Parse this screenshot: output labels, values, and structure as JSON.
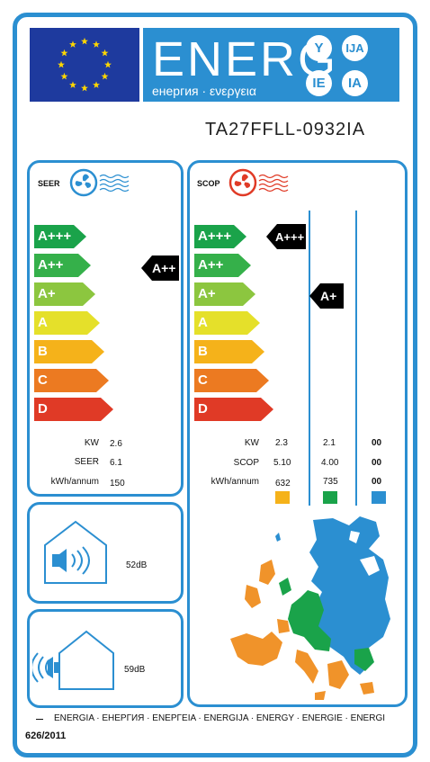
{
  "header": {
    "energy_word": "ENERG",
    "energy_subtitle": "енергия · ενεργεια",
    "suffixes": [
      "Y",
      "IJA",
      "IE",
      "IA"
    ],
    "model": "TA27FFLL-0932IA"
  },
  "seer": {
    "title": "SEER",
    "classes": [
      "A+++",
      "A++",
      "A+",
      "A",
      "B",
      "C",
      "D"
    ],
    "class_colors": [
      "#1aa34a",
      "#35b04a",
      "#8cc63f",
      "#e5e02a",
      "#f5b21a",
      "#ec7a21",
      "#e03a26"
    ],
    "rating": "A++",
    "rows": [
      {
        "label": "KW",
        "value": "2.6"
      },
      {
        "label": "SEER",
        "value": "6.1"
      },
      {
        "label": "kWh/annum",
        "value": "150"
      }
    ]
  },
  "scop": {
    "title": "SCOP",
    "ratings": [
      "A+++",
      "A+"
    ],
    "rows": [
      {
        "label": "KW",
        "values": [
          "2.3",
          "2.1",
          "00"
        ]
      },
      {
        "label": "SCOP",
        "values": [
          "5.10",
          "4.00",
          "00"
        ]
      },
      {
        "label": "kWh/annum",
        "values": [
          "632",
          "735",
          "00"
        ]
      }
    ],
    "zone_colors": [
      "#f5b21a",
      "#1aa34a",
      "#2b8fd1"
    ]
  },
  "noise": {
    "indoor": "52dB",
    "outdoor": "59dB"
  },
  "footer": {
    "languages": "ENERGIA · ЕНЕРГИЯ · ΕΝΕΡΓΕΙΑ · ENERGIJA · ENERGY · ENERGIE · ENERGI",
    "regulation": "626/2011"
  }
}
